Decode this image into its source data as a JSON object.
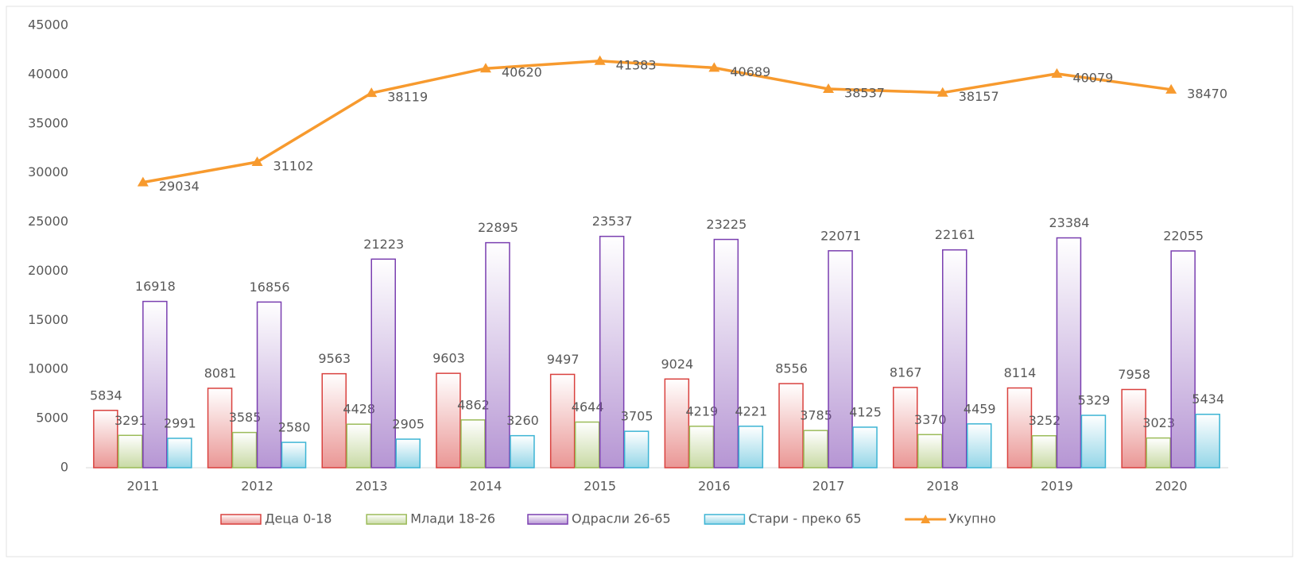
{
  "chart_data": {
    "type": "bar",
    "categories": [
      "2011",
      "2012",
      "2013",
      "2014",
      "2015",
      "2016",
      "2017",
      "2018",
      "2019",
      "2020"
    ],
    "series": [
      {
        "name": "Деца 0-18",
        "color": "#d9413e",
        "values": [
          5834,
          8081,
          9563,
          9603,
          9497,
          9024,
          8556,
          8167,
          8114,
          7958
        ]
      },
      {
        "name": "Млади 18-26",
        "color": "#9bbb59",
        "values": [
          3291,
          3585,
          4428,
          4862,
          4644,
          4219,
          3785,
          3370,
          3252,
          3023
        ]
      },
      {
        "name": "Одрасли 26-65",
        "color": "#7a3fb0",
        "values": [
          16918,
          16856,
          21223,
          22895,
          23537,
          23225,
          22071,
          22161,
          23384,
          22055
        ]
      },
      {
        "name": "Стари - преко 65",
        "color": "#3cb4d4",
        "values": [
          2991,
          2580,
          2905,
          3260,
          3705,
          4221,
          4125,
          4459,
          5329,
          5434
        ]
      },
      {
        "name": "Укупно",
        "type": "line",
        "color": "#f79a2e",
        "values": [
          29034,
          31102,
          38119,
          40620,
          41383,
          40689,
          38537,
          38157,
          40079,
          38470
        ]
      }
    ],
    "ylim": [
      0,
      45000
    ],
    "yticks": [
      0,
      5000,
      10000,
      15000,
      20000,
      25000,
      30000,
      35000,
      40000,
      45000
    ],
    "legend": "bottom"
  }
}
